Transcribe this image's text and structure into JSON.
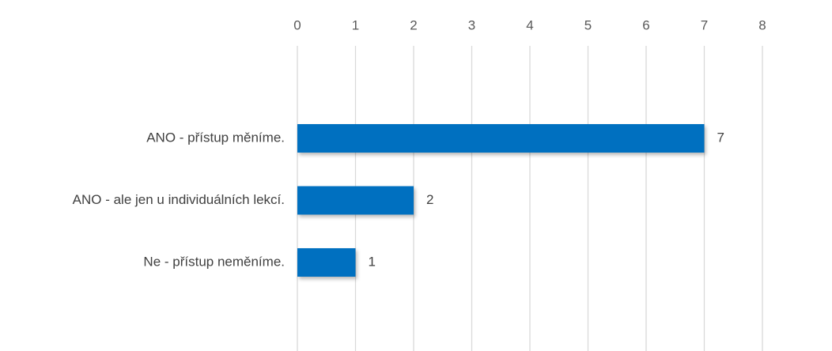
{
  "chart_data": {
    "type": "bar",
    "orientation": "horizontal",
    "categories": [
      "ANO - přístup měníme.",
      "ANO - ale jen u individuálních lekcí.",
      "Ne - přístup neměníme."
    ],
    "values": [
      7,
      2,
      1
    ],
    "xlim": [
      0,
      8
    ],
    "x_ticks": [
      0,
      1,
      2,
      3,
      4,
      5,
      6,
      7,
      8
    ],
    "x_axis_position": "top",
    "grid": true,
    "legend": "none",
    "data_labels": true,
    "bar_color": "#0070C0",
    "grid_color": "#D9D9D9"
  }
}
